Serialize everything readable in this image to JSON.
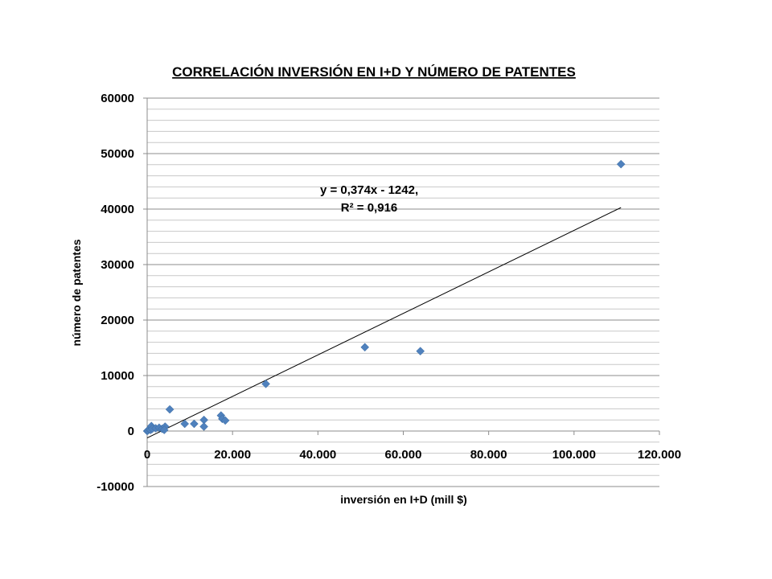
{
  "chart_data": {
    "type": "scatter",
    "title": "CORRELACIÓN INVERSIÓN EN I+D Y NÚMERO DE PATENTES",
    "xlabel": "inversión en I+D (mill $)",
    "ylabel": "número de patentes",
    "xlim": [
      0,
      120000
    ],
    "ylim": [
      -10000,
      60000
    ],
    "x_ticks": [
      0,
      20000,
      40000,
      60000,
      80000,
      100000,
      120000
    ],
    "x_tick_labels": [
      "0",
      "20.000",
      "40.000",
      "60.000",
      "80.000",
      "100.000",
      "120.000"
    ],
    "y_ticks": [
      -10000,
      0,
      10000,
      20000,
      30000,
      40000,
      50000,
      60000
    ],
    "y_tick_labels": [
      "-10000",
      "0",
      "10000",
      "20000",
      "30000",
      "40000",
      "50000",
      "60000"
    ],
    "grid": true,
    "minor_gridlines": true,
    "marker": "diamond",
    "point_color": "#4F81BD",
    "trendline_color": "#000000",
    "points": [
      {
        "x": 0,
        "y": 0
      },
      {
        "x": 200,
        "y": 100
      },
      {
        "x": 500,
        "y": 300
      },
      {
        "x": 800,
        "y": 200
      },
      {
        "x": 1000,
        "y": 900
      },
      {
        "x": 1200,
        "y": 400
      },
      {
        "x": 2000,
        "y": 500
      },
      {
        "x": 2800,
        "y": 600
      },
      {
        "x": 3500,
        "y": 400
      },
      {
        "x": 4200,
        "y": 800
      },
      {
        "x": 4000,
        "y": 200
      },
      {
        "x": 5300,
        "y": 3900
      },
      {
        "x": 8800,
        "y": 1300
      },
      {
        "x": 11000,
        "y": 1300
      },
      {
        "x": 13300,
        "y": 2000
      },
      {
        "x": 13300,
        "y": 800
      },
      {
        "x": 17300,
        "y": 2800
      },
      {
        "x": 17600,
        "y": 2200
      },
      {
        "x": 18300,
        "y": 1900
      },
      {
        "x": 27800,
        "y": 8500
      },
      {
        "x": 51000,
        "y": 15100
      },
      {
        "x": 64000,
        "y": 14400
      },
      {
        "x": 111000,
        "y": 48100
      }
    ],
    "trendline": {
      "slope": 0.374,
      "intercept": -1242,
      "x_range": [
        0,
        111000
      ],
      "equation_label": "y = 0,374x - 1242,",
      "r2_label": "R² = 0,916",
      "label_anchor": {
        "x": 52000,
        "y": 42000
      }
    }
  }
}
